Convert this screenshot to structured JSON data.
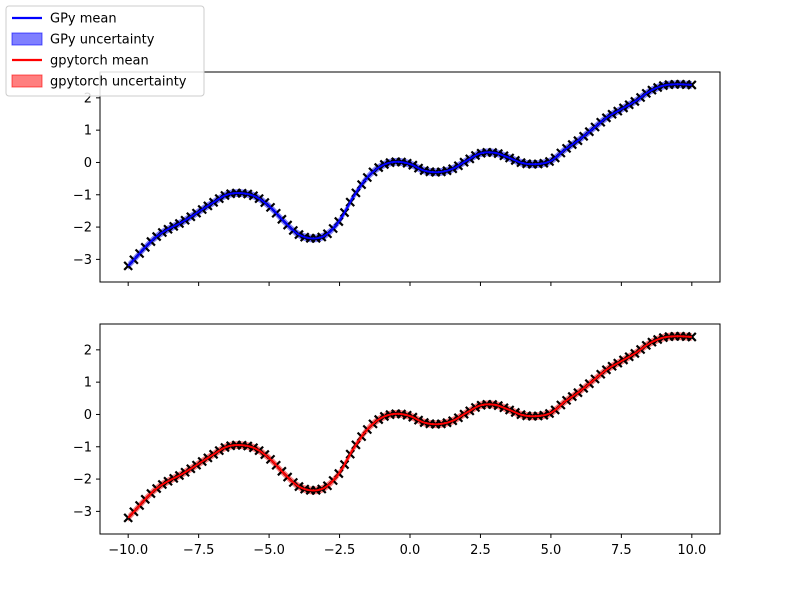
{
  "legend": {
    "items": [
      {
        "label": "GPy mean",
        "kind": "line",
        "color": "#0000ff"
      },
      {
        "label": "GPy uncertainty",
        "kind": "patch",
        "color": "#0000ff"
      },
      {
        "label": "gpytorch mean",
        "kind": "line",
        "color": "#ff0000"
      },
      {
        "label": "gpytorch uncertainty",
        "kind": "patch",
        "color": "#ff0000"
      }
    ],
    "placement": "upper-left of figure"
  },
  "chart_data": [
    {
      "type": "line",
      "panel": "top",
      "xlim": [
        -11.0,
        11.0
      ],
      "ylim": [
        -3.7,
        2.8
      ],
      "xticks": [
        -10.0,
        -7.5,
        -5.0,
        -2.5,
        0.0,
        2.5,
        5.0,
        7.5,
        10.0
      ],
      "yticks": [
        -3,
        -2,
        -1,
        0,
        1,
        2
      ],
      "xtick_labels_visible": false,
      "grid": false,
      "mean_color": "#0000ff",
      "band_color": "#0000ff",
      "series": [
        {
          "name": "GPy mean",
          "role": "mean"
        },
        {
          "name": "GPy uncertainty",
          "role": "band"
        }
      ],
      "mean_curve": {
        "x": [
          -10.0,
          -9.0,
          -8.0,
          -7.0,
          -6.5,
          -6.0,
          -5.5,
          -5.0,
          -4.5,
          -4.0,
          -3.5,
          -3.0,
          -2.5,
          -2.0,
          -1.5,
          -1.0,
          -0.5,
          0.0,
          0.5,
          1.0,
          1.5,
          2.0,
          2.5,
          3.0,
          3.5,
          4.0,
          4.5,
          5.0,
          5.5,
          6.0,
          6.5,
          7.0,
          7.5,
          8.0,
          8.5,
          9.0,
          9.5,
          10.0
        ],
        "y": [
          -3.2,
          -2.3,
          -1.8,
          -1.25,
          -1.0,
          -0.95,
          -1.05,
          -1.35,
          -1.8,
          -2.2,
          -2.35,
          -2.25,
          -1.8,
          -1.05,
          -0.45,
          -0.1,
          0.02,
          -0.05,
          -0.25,
          -0.3,
          -0.2,
          0.05,
          0.28,
          0.3,
          0.15,
          -0.02,
          -0.05,
          0.05,
          0.4,
          0.7,
          1.05,
          1.4,
          1.65,
          1.9,
          2.2,
          2.38,
          2.42,
          2.4
        ]
      },
      "band_halfwidth": 0.12,
      "observations": {
        "marker": "x",
        "color": "#000000",
        "x_range": [
          -10.0,
          10.0
        ],
        "count": 100
      }
    },
    {
      "type": "line",
      "panel": "bottom",
      "xlim": [
        -11.0,
        11.0
      ],
      "ylim": [
        -3.7,
        2.8
      ],
      "xticks": [
        -10.0,
        -7.5,
        -5.0,
        -2.5,
        0.0,
        2.5,
        5.0,
        7.5,
        10.0
      ],
      "yticks": [
        -3,
        -2,
        -1,
        0,
        1,
        2
      ],
      "xtick_labels": [
        "−10.0",
        "−7.5",
        "−5.0",
        "−2.5",
        "0.0",
        "2.5",
        "5.0",
        "7.5",
        "10.0"
      ],
      "xtick_labels_visible": true,
      "grid": false,
      "mean_color": "#ff0000",
      "band_color": "#ff0000",
      "series": [
        {
          "name": "gpytorch mean",
          "role": "mean"
        },
        {
          "name": "gpytorch uncertainty",
          "role": "band"
        }
      ],
      "mean_curve": {
        "x": [
          -10.0,
          -9.0,
          -8.0,
          -7.0,
          -6.5,
          -6.0,
          -5.5,
          -5.0,
          -4.5,
          -4.0,
          -3.5,
          -3.0,
          -2.5,
          -2.0,
          -1.5,
          -1.0,
          -0.5,
          0.0,
          0.5,
          1.0,
          1.5,
          2.0,
          2.5,
          3.0,
          3.5,
          4.0,
          4.5,
          5.0,
          5.5,
          6.0,
          6.5,
          7.0,
          7.5,
          8.0,
          8.5,
          9.0,
          9.5,
          10.0
        ],
        "y": [
          -3.2,
          -2.3,
          -1.8,
          -1.25,
          -1.0,
          -0.95,
          -1.05,
          -1.35,
          -1.8,
          -2.2,
          -2.35,
          -2.25,
          -1.8,
          -1.05,
          -0.45,
          -0.1,
          0.02,
          -0.05,
          -0.25,
          -0.3,
          -0.2,
          0.05,
          0.28,
          0.3,
          0.15,
          -0.02,
          -0.05,
          0.05,
          0.4,
          0.7,
          1.05,
          1.4,
          1.65,
          1.9,
          2.2,
          2.38,
          2.42,
          2.4
        ]
      },
      "band_halfwidth": 0.12,
      "observations": {
        "marker": "x",
        "color": "#000000",
        "x_range": [
          -10.0,
          10.0
        ],
        "count": 100
      }
    }
  ]
}
